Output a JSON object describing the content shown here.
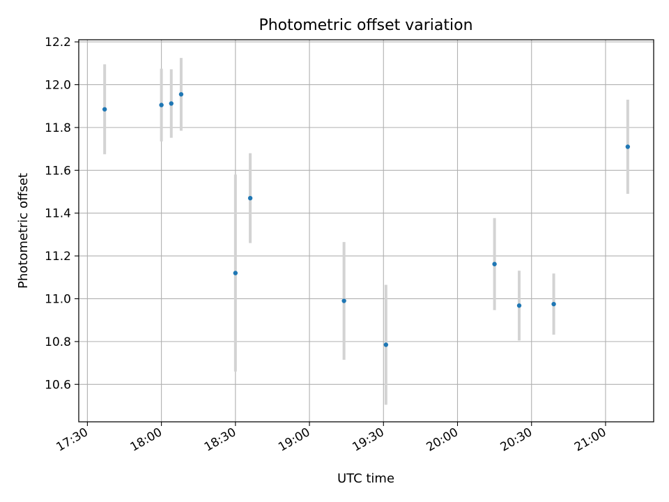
{
  "chart_data": {
    "type": "scatter",
    "title": "Photometric offset variation",
    "xlabel": "UTC time",
    "ylabel": "Photometric offset",
    "x_tick_labels": [
      "17:30",
      "18:00",
      "18:30",
      "19:00",
      "19:30",
      "20:00",
      "20:30",
      "21:00"
    ],
    "x_tick_minutes": [
      1050,
      1080,
      1110,
      1140,
      1170,
      1200,
      1230,
      1260
    ],
    "xlim_minutes": [
      1046.5,
      1279.5
    ],
    "y_ticks": [
      10.6,
      10.8,
      11.0,
      11.2,
      11.4,
      11.6,
      11.8,
      12.0,
      12.2
    ],
    "y_tick_labels": [
      "10.6",
      "10.8",
      "11.0",
      "11.2",
      "11.4",
      "11.6",
      "11.8",
      "12.0",
      "12.2"
    ],
    "ylim": [
      10.425,
      12.21
    ],
    "grid": true,
    "marker_color": "#1f77b4",
    "errorbar_color": "#d3d3d3",
    "series": [
      {
        "x": [
          "17:37",
          "18:00",
          "18:04",
          "18:08",
          "18:30",
          "18:36",
          "19:14",
          "19:31",
          "20:15",
          "20:25",
          "20:39",
          "21:09"
        ],
        "x_minutes": [
          1057,
          1080,
          1084,
          1088,
          1110,
          1116,
          1154,
          1171,
          1215,
          1225,
          1239,
          1269
        ],
        "y": [
          11.885,
          11.905,
          11.912,
          11.955,
          11.12,
          11.47,
          10.99,
          10.785,
          11.162,
          10.968,
          10.975,
          11.71
        ],
        "yerr": [
          0.21,
          0.17,
          0.16,
          0.17,
          0.46,
          0.21,
          0.275,
          0.28,
          0.215,
          0.163,
          0.143,
          0.22
        ]
      }
    ]
  }
}
